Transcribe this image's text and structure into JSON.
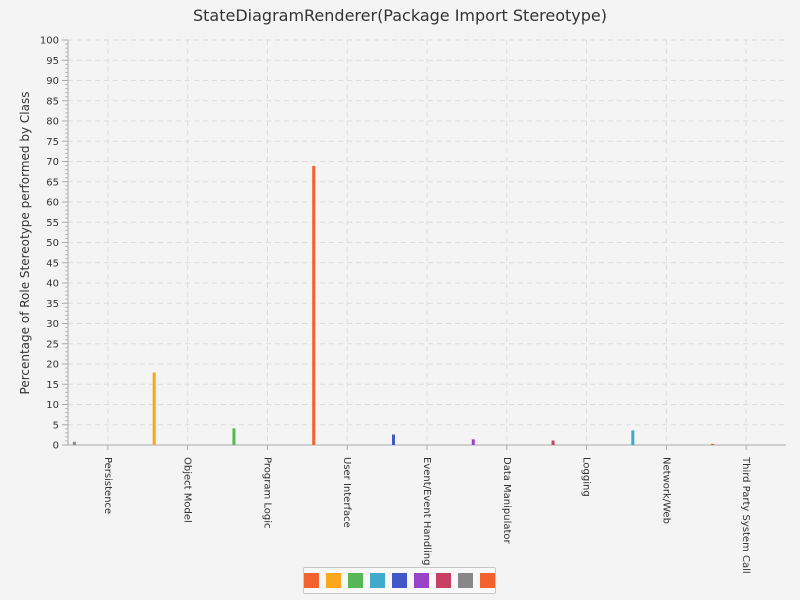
{
  "chart_data": {
    "type": "bar",
    "title": "StateDiagramRenderer(Package Import Stereotype)",
    "xlabel": "",
    "ylabel": "Percentage of Role Stereotype performed by Class",
    "ylim": [
      0,
      100
    ],
    "yticks": [
      0,
      5,
      10,
      15,
      20,
      25,
      30,
      35,
      40,
      45,
      50,
      55,
      60,
      65,
      70,
      75,
      80,
      85,
      90,
      95,
      100
    ],
    "grid": true,
    "legend_position": "bottom",
    "categories": [
      "Persistence",
      "Object Model",
      "Program Logic",
      "User Interface",
      "Event/Event Handling",
      "Data Manipulator",
      "Logging",
      "Network/Web",
      "Third Party System Call"
    ],
    "values": [
      0.8,
      17.9,
      4.1,
      68.9,
      2.6,
      1.4,
      1.1,
      3.6,
      0.3
    ],
    "colors": [
      "#f3622d",
      "#fba71b",
      "#57b757",
      "#41a9c9",
      "#4258c9",
      "#9a42c8",
      "#c84164",
      "#888888",
      "#f3622d"
    ],
    "bar_colors": [
      "#888888",
      "#fba71b",
      "#57b757",
      "#f3622d",
      "#4258c9",
      "#9a42c8",
      "#c84164",
      "#41a9c9",
      "#f3622d"
    ]
  }
}
